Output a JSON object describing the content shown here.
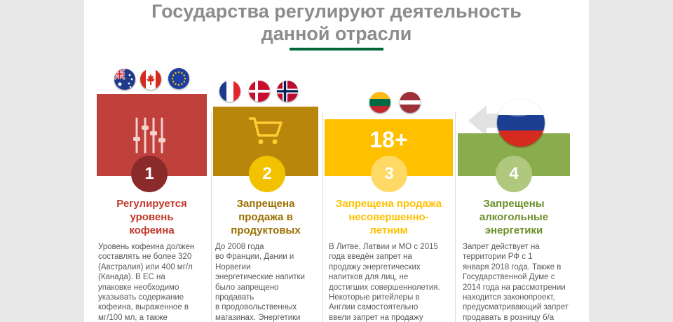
{
  "title": {
    "line1": "Государства регулируют деятельность",
    "line2": "данной отрасли"
  },
  "colors": {
    "title_rule": "#006837",
    "card1": "#c0403c",
    "card1_circle": "#8b2a2a",
    "card2": "#b8860b",
    "card2_circle": "#f2c200",
    "card3": "#ffc000",
    "card3_circle": "#ffd966",
    "card4": "#8aac4c",
    "card4_circle": "#b0c77e"
  },
  "cards": [
    {
      "number": "1",
      "icon": "sliders-icon",
      "flags": [
        "flag-australia",
        "flag-canada",
        "flag-eu"
      ],
      "heading": [
        "Регулируется",
        "уровень",
        "кофеина"
      ],
      "body": [
        "Уровень кофеина должен",
        "составлять не более 320",
        "(Австралия) или 400 мг/л",
        "(Канада).    В    ЕС    на",
        "упаковке       необходимо",
        "указывать      содержание",
        "кофеина, выраженное в",
        "мг/100    мл,    а    также"
      ]
    },
    {
      "number": "2",
      "icon": "shopping-cart-icon",
      "flags": [
        "flag-france",
        "flag-denmark",
        "flag-norway"
      ],
      "heading": [
        "Запрещена",
        "продажа в",
        "продуктовых"
      ],
      "body": [
        "До          2008          года",
        "во  Франции,  Дании  и",
        "Норвегии",
        "энергетические напитки",
        "было            запрещено",
        "продавать",
        "в продовольственных",
        "магазинах.   Энергетики"
      ]
    },
    {
      "number": "3",
      "icon_text": "18+",
      "flags": [
        "flag-lithuania",
        "flag-latvia"
      ],
      "heading": [
        "Запрещена продажа",
        "несовершенно-",
        "летним"
      ],
      "body": [
        "В Литве, Латвии и МО с 2015",
        "года  введён  запрет  на",
        "продажу     энергетических",
        "напитков   для   лиц,   не",
        "достигших совершеннолетия.",
        "Некоторые     ритейлеры     в",
        "Англии      самостоятельно",
        "ввели  запрет  на  продажу"
      ]
    },
    {
      "number": "4",
      "flags": [
        "flag-russia"
      ],
      "heading": [
        "Запрещены",
        "алкогольные",
        "энергетики"
      ],
      "body": [
        "Запрет        действует        на",
        "территории    РФ    с    1",
        "января 2018 года. Также в",
        "Государственной   Думе   с",
        "2014 года на рассмотрении",
        "находится       законопроект,",
        "предусматривающий запрет",
        "продавать  в  розницу  б/а"
      ]
    }
  ]
}
